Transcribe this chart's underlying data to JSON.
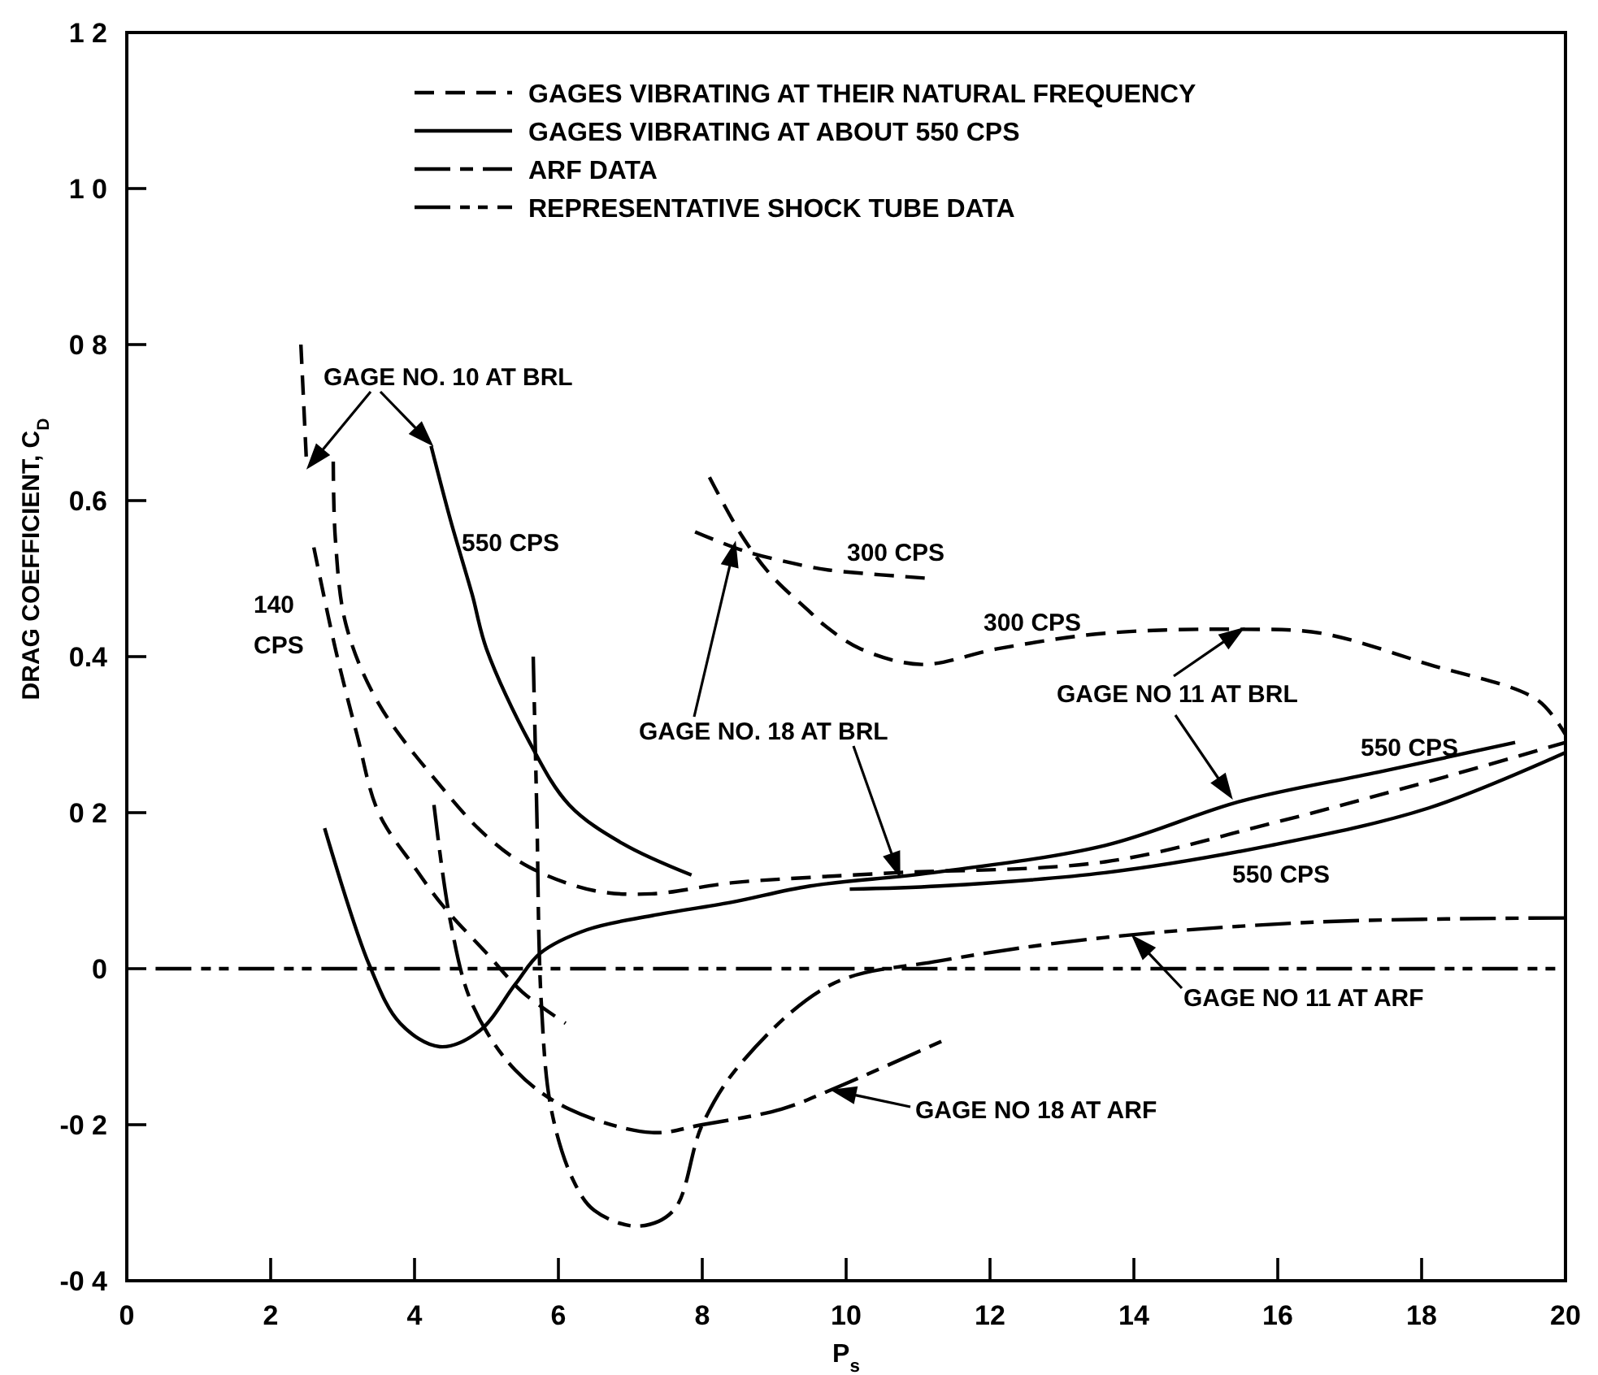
{
  "chart_data": {
    "type": "line",
    "xlabel": "P$_{s}$",
    "ylabel": "DRAG COEFFICIENT, C$_{D}$",
    "xlim": [
      0,
      20
    ],
    "ylim": [
      -0.4,
      1.2
    ],
    "xticks": [
      0,
      2,
      4,
      6,
      8,
      10,
      12,
      14,
      16,
      18,
      20
    ],
    "yticks": [
      {
        "value": -0.4,
        "label": "-0 4"
      },
      {
        "value": -0.2,
        "label": "-0 2"
      },
      0,
      {
        "value": 0.2,
        "label": "0 2"
      },
      0.4,
      0.6,
      {
        "value": 0.8,
        "label": "0 8"
      },
      {
        "value": 1.0,
        "label": "1 0"
      },
      {
        "value": 1.2,
        "label": "1 2"
      }
    ],
    "grid": false,
    "legend": "top",
    "marker": "none",
    "series": [
      {
        "name": "GAGES VIBRATING AT THEIR NATURAL FREQUENCY",
        "color": "#000000",
        "line_style": "dashed",
        "x": [
          2.6,
          2.9,
          3.2,
          3.5,
          4.0,
          4.4,
          5.0,
          5.5,
          6.1
        ],
        "values": [
          0.54,
          0.41,
          0.3,
          0.2,
          0.13,
          0.08,
          0.02,
          -0.03,
          -0.07
        ]
      },
      {
        "name": "GAGES VIBRATING AT ABOUT 550 CPS",
        "color": "#000000",
        "line_style": "solid",
        "x": [
          4.23,
          4.5,
          4.8,
          5.0,
          5.6,
          6.15,
          6.9,
          7.85
        ],
        "values": [
          0.67,
          0.575,
          0.48,
          0.41,
          0.29,
          0.21,
          0.16,
          0.12
        ]
      },
      {
        "name": "ARF DATA",
        "color": "#000000",
        "line_style": "dashdot",
        "x": [
          5.65,
          5.7,
          5.76,
          5.9,
          6.2,
          6.5,
          7.1,
          7.6,
          8.0,
          8.55,
          9.8,
          11.3,
          13.6,
          16.6,
          20
        ],
        "values": [
          0.4,
          0.2,
          -0.04,
          -0.18,
          -0.27,
          -0.31,
          -0.33,
          -0.31,
          -0.2,
          -0.12,
          -0.02,
          0.01,
          0.04,
          0.06,
          0.065
        ]
      },
      {
        "name": "REPRESENTATIVE SHOCK TUBE DATA",
        "color": "#000000",
        "line_style": "dashdotdot",
        "x": [
          0.4,
          20
        ],
        "values": [
          0,
          0
        ]
      },
      {
        "color": "#000000",
        "line_style": "dashed",
        "x": [
          2.42,
          2.5
        ],
        "values": [
          0.8,
          0.645
        ]
      },
      {
        "color": "#000000",
        "line_style": "dashed",
        "x": [
          2.87,
          2.9,
          3.05,
          3.5,
          4.4,
          5.0,
          5.6,
          6.5,
          7.3,
          8.4,
          9.5,
          10.7,
          13.6,
          15.9,
          18.1,
          20
        ],
        "values": [
          0.65,
          0.55,
          0.44,
          0.34,
          0.23,
          0.17,
          0.13,
          0.1,
          0.096,
          0.11,
          0.117,
          0.123,
          0.137,
          0.186,
          0.24,
          0.29
        ]
      },
      {
        "color": "#000000",
        "line_style": "dashed",
        "x": [
          8.1,
          8.55,
          8.95,
          9.5,
          9.7,
          10.2,
          11.05,
          12.1,
          13.6,
          15.5,
          16.6,
          18.1,
          19.6,
          20
        ],
        "values": [
          0.63,
          0.555,
          0.505,
          0.457,
          0.44,
          0.41,
          0.39,
          0.41,
          0.43,
          0.435,
          0.43,
          0.39,
          0.345,
          0.3
        ]
      },
      {
        "color": "#000000",
        "line_style": "dashed",
        "x": [
          7.9,
          8.6,
          9.5,
          9.85,
          11.2
        ],
        "values": [
          0.56,
          0.535,
          0.515,
          0.51,
          0.5
        ]
      },
      {
        "color": "#000000",
        "line_style": "dashdot",
        "x": [
          4.27,
          4.5,
          4.8,
          5.4,
          6.15,
          7.3,
          8.0,
          9.1,
          9.8,
          11.4
        ],
        "values": [
          0.21,
          0.06,
          -0.045,
          -0.13,
          -0.18,
          -0.21,
          -0.2,
          -0.18,
          -0.155,
          -0.09
        ]
      },
      {
        "color": "#000000",
        "line_style": "solid",
        "x": [
          2.75,
          3.37,
          3.8,
          4.35,
          4.9,
          5.4,
          5.75,
          6.4,
          7.3,
          8.4,
          9.5,
          11.2,
          13.6,
          15.5,
          17.4,
          19.3
        ],
        "values": [
          0.18,
          0.005,
          -0.07,
          -0.1,
          -0.08,
          -0.02,
          0.02,
          0.05,
          0.068,
          0.085,
          0.106,
          0.123,
          0.158,
          0.215,
          0.252,
          0.29
        ]
      },
      {
        "color": "#000000",
        "line_style": "solid",
        "x": [
          10.05,
          11.3,
          13.6,
          15.9,
          18.1,
          20
        ],
        "values": [
          0.102,
          0.106,
          0.123,
          0.158,
          0.206,
          0.277
        ]
      }
    ],
    "annotations": [
      "GAGE NO. 10 AT BRL",
      "550 CPS",
      "140 CPS",
      "300 CPS",
      "300 CPS",
      "GAGE NO. 18 AT BRL",
      {
        "text": "GAGE NO 11 AT BRL",
        "x": 15.5,
        "y": 0.435
      },
      "550 CPS",
      "550 CPS",
      {
        "text": "GAGE NO 11 AT ARF",
        "x": 14,
        "y": 0.04
      },
      "GAGE NO 18 AT ARF"
    ]
  }
}
